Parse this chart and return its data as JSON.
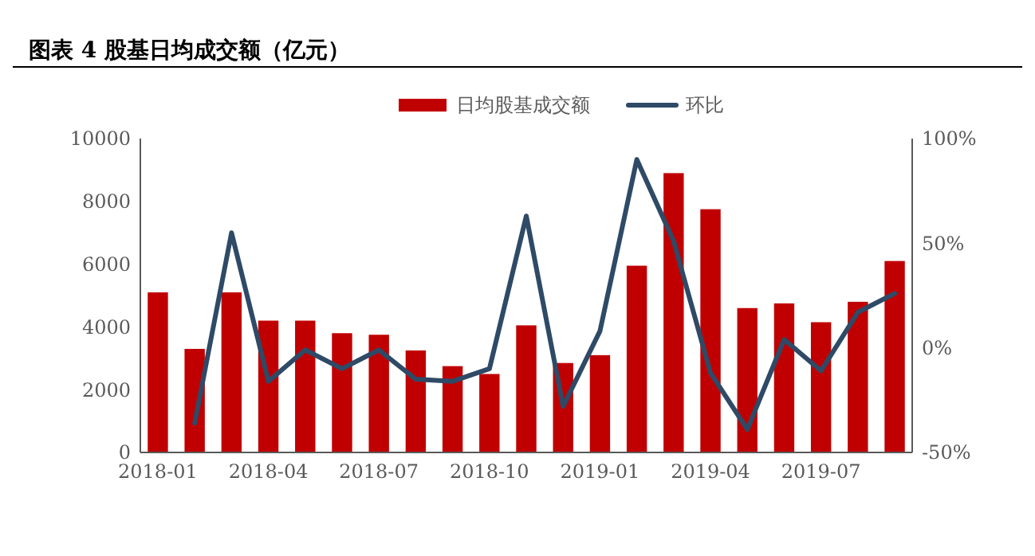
{
  "chart_data": {
    "type": "bar",
    "title": "图表 4 股基日均成交额（亿元）",
    "categories": [
      "2018-01",
      null,
      null,
      "2018-04",
      null,
      null,
      "2018-07",
      null,
      null,
      "2018-10",
      null,
      null,
      "2019-01",
      null,
      null,
      "2019-04",
      null,
      null,
      "2019-07",
      null,
      null
    ],
    "series": [
      {
        "name": "日均股基成交额",
        "color": "#c00000",
        "values": [
          5100,
          3300,
          5100,
          4200,
          4200,
          3800,
          3750,
          3250,
          2750,
          2500,
          4050,
          2850,
          3100,
          5950,
          8900,
          7750,
          4600,
          4750,
          4150,
          4800,
          6100
        ]
      },
      {
        "name": "环比",
        "type": "line",
        "axis": "y2",
        "color": "#2e4a66",
        "values": [
          null,
          -36,
          55,
          -16,
          -1,
          -10,
          -1,
          -15,
          -16,
          -10,
          63,
          -28,
          8,
          90,
          51,
          -12,
          -39,
          4,
          -11,
          17,
          26
        ]
      }
    ],
    "ylim": [
      0,
      10000
    ],
    "yticks": [
      0,
      2000,
      4000,
      6000,
      8000,
      10000
    ],
    "y2lim": [
      -50,
      100
    ],
    "y2ticks": [
      {
        "value": -50,
        "label": "-50%"
      },
      {
        "value": 0,
        "label": "0%"
      },
      {
        "value": 50,
        "label": "50%"
      },
      {
        "value": 100,
        "label": "100%"
      }
    ],
    "legend": "top",
    "grid": false,
    "marker": "none",
    "line_style": "solid"
  }
}
